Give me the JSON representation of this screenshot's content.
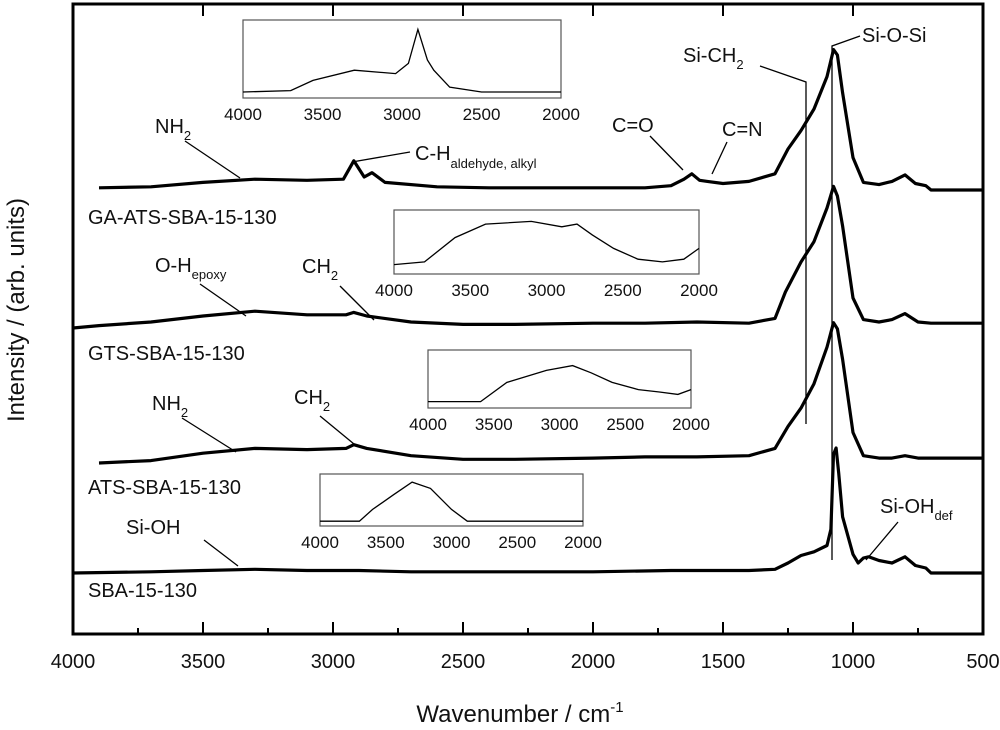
{
  "chart_data": {
    "type": "line",
    "title": "",
    "xlabel": "Wavenumber / cm",
    "xlabel_superscript": "-1",
    "ylabel": "Intensity / (arb. units)",
    "xlim": [
      4000,
      500
    ],
    "x_ticks": [
      "4000",
      "3500",
      "3000",
      "2500",
      "2000",
      "1500",
      "1000",
      "500"
    ],
    "series": [
      {
        "name": "GA-ATS-SBA-15-130",
        "points": [
          [
            3900,
            0.02
          ],
          [
            3700,
            0.03
          ],
          [
            3500,
            0.07
          ],
          [
            3300,
            0.1
          ],
          [
            3100,
            0.09
          ],
          [
            2960,
            0.1
          ],
          [
            2920,
            0.27
          ],
          [
            2880,
            0.12
          ],
          [
            2850,
            0.16
          ],
          [
            2800,
            0.07
          ],
          [
            2600,
            0.03
          ],
          [
            2400,
            0.02
          ],
          [
            2200,
            0.02
          ],
          [
            2000,
            0.02
          ],
          [
            1800,
            0.02
          ],
          [
            1700,
            0.04
          ],
          [
            1650,
            0.1
          ],
          [
            1620,
            0.15
          ],
          [
            1590,
            0.09
          ],
          [
            1560,
            0.08
          ],
          [
            1500,
            0.06
          ],
          [
            1400,
            0.08
          ],
          [
            1300,
            0.15
          ],
          [
            1250,
            0.38
          ],
          [
            1200,
            0.55
          ],
          [
            1150,
            0.75
          ],
          [
            1100,
            1.05
          ],
          [
            1075,
            1.3
          ],
          [
            1060,
            1.25
          ],
          [
            1040,
            0.9
          ],
          [
            1000,
            0.3
          ],
          [
            960,
            0.07
          ],
          [
            900,
            0.05
          ],
          [
            850,
            0.08
          ],
          [
            800,
            0.14
          ],
          [
            760,
            0.06
          ],
          [
            720,
            0.04
          ],
          [
            700,
            0.0
          ],
          [
            500,
            0.0
          ]
        ]
      },
      {
        "name": "GTS-SBA-15-130",
        "points": [
          [
            4000,
            0.0
          ],
          [
            3900,
            0.02
          ],
          [
            3700,
            0.05
          ],
          [
            3500,
            0.1
          ],
          [
            3300,
            0.14
          ],
          [
            3100,
            0.11
          ],
          [
            2950,
            0.11
          ],
          [
            2920,
            0.13
          ],
          [
            2870,
            0.1
          ],
          [
            2700,
            0.05
          ],
          [
            2500,
            0.03
          ],
          [
            2300,
            0.03
          ],
          [
            2000,
            0.04
          ],
          [
            1800,
            0.04
          ],
          [
            1600,
            0.05
          ],
          [
            1400,
            0.04
          ],
          [
            1300,
            0.08
          ],
          [
            1260,
            0.3
          ],
          [
            1200,
            0.55
          ],
          [
            1150,
            0.72
          ],
          [
            1100,
            1.0
          ],
          [
            1075,
            1.18
          ],
          [
            1060,
            1.1
          ],
          [
            1040,
            0.85
          ],
          [
            1000,
            0.25
          ],
          [
            960,
            0.07
          ],
          [
            900,
            0.05
          ],
          [
            850,
            0.07
          ],
          [
            800,
            0.12
          ],
          [
            750,
            0.05
          ],
          [
            700,
            0.04
          ],
          [
            500,
            0.04
          ]
        ]
      },
      {
        "name": "ATS-SBA-15-130",
        "points": [
          [
            3900,
            0.0
          ],
          [
            3700,
            0.02
          ],
          [
            3500,
            0.08
          ],
          [
            3300,
            0.12
          ],
          [
            3100,
            0.11
          ],
          [
            2950,
            0.12
          ],
          [
            2920,
            0.15
          ],
          [
            2870,
            0.12
          ],
          [
            2700,
            0.06
          ],
          [
            2500,
            0.03
          ],
          [
            2300,
            0.03
          ],
          [
            2000,
            0.04
          ],
          [
            1800,
            0.05
          ],
          [
            1600,
            0.05
          ],
          [
            1400,
            0.06
          ],
          [
            1300,
            0.12
          ],
          [
            1250,
            0.3
          ],
          [
            1200,
            0.45
          ],
          [
            1150,
            0.65
          ],
          [
            1100,
            0.95
          ],
          [
            1075,
            1.15
          ],
          [
            1060,
            1.1
          ],
          [
            1040,
            0.85
          ],
          [
            1000,
            0.25
          ],
          [
            960,
            0.06
          ],
          [
            900,
            0.04
          ],
          [
            850,
            0.04
          ],
          [
            800,
            0.06
          ],
          [
            750,
            0.04
          ],
          [
            500,
            0.04
          ]
        ]
      },
      {
        "name": "SBA-15-130",
        "points": [
          [
            4000,
            0.0
          ],
          [
            3700,
            0.01
          ],
          [
            3500,
            0.02
          ],
          [
            3300,
            0.03
          ],
          [
            3100,
            0.02
          ],
          [
            2900,
            0.02
          ],
          [
            2700,
            0.01
          ],
          [
            2400,
            0.01
          ],
          [
            2000,
            0.01
          ],
          [
            1700,
            0.02
          ],
          [
            1400,
            0.02
          ],
          [
            1300,
            0.03
          ],
          [
            1250,
            0.08
          ],
          [
            1200,
            0.14
          ],
          [
            1150,
            0.17
          ],
          [
            1100,
            0.22
          ],
          [
            1085,
            0.35
          ],
          [
            1075,
            0.95
          ],
          [
            1065,
            1.0
          ],
          [
            1055,
            0.8
          ],
          [
            1040,
            0.45
          ],
          [
            1000,
            0.15
          ],
          [
            980,
            0.08
          ],
          [
            960,
            0.12
          ],
          [
            940,
            0.13
          ],
          [
            900,
            0.1
          ],
          [
            850,
            0.08
          ],
          [
            800,
            0.13
          ],
          [
            760,
            0.06
          ],
          [
            720,
            0.04
          ],
          [
            700,
            0.0
          ],
          [
            500,
            0.0
          ]
        ]
      }
    ],
    "insets": [
      {
        "series": "GA-ATS-SBA-15-130",
        "x_ticks": [
          "4000",
          "3500",
          "3000",
          "2500",
          "2000"
        ]
      },
      {
        "series": "GTS-SBA-15-130",
        "x_ticks": [
          "4000",
          "3500",
          "3000",
          "2500",
          "2000"
        ]
      },
      {
        "series": "ATS-SBA-15-130",
        "x_ticks": [
          "4000",
          "3500",
          "3000",
          "2500",
          "2000"
        ]
      },
      {
        "series": "SBA-15-130",
        "x_ticks": [
          "4000",
          "3500",
          "3000",
          "2500",
          "2000"
        ]
      }
    ],
    "annotations": {
      "nh2_top": {
        "base": "NH",
        "sub": "2"
      },
      "ch_aldehyde": {
        "base": "C-H",
        "sub": "aldehyde, alkyl"
      },
      "co": "C=O",
      "cn": "C=N",
      "sich2": {
        "base": "Si-CH",
        "sub": "2"
      },
      "siosi": "Si-O-Si",
      "oh_epoxy": {
        "base": "O-H",
        "sub": "epoxy"
      },
      "ch2_gts": {
        "base": "CH",
        "sub": "2"
      },
      "nh2_ats": {
        "base": "NH",
        "sub": "2"
      },
      "ch2_ats": {
        "base": "CH",
        "sub": "2"
      },
      "sioh": "Si-OH",
      "sioh_def": {
        "base": "Si-OH",
        "sub": "def"
      }
    }
  }
}
